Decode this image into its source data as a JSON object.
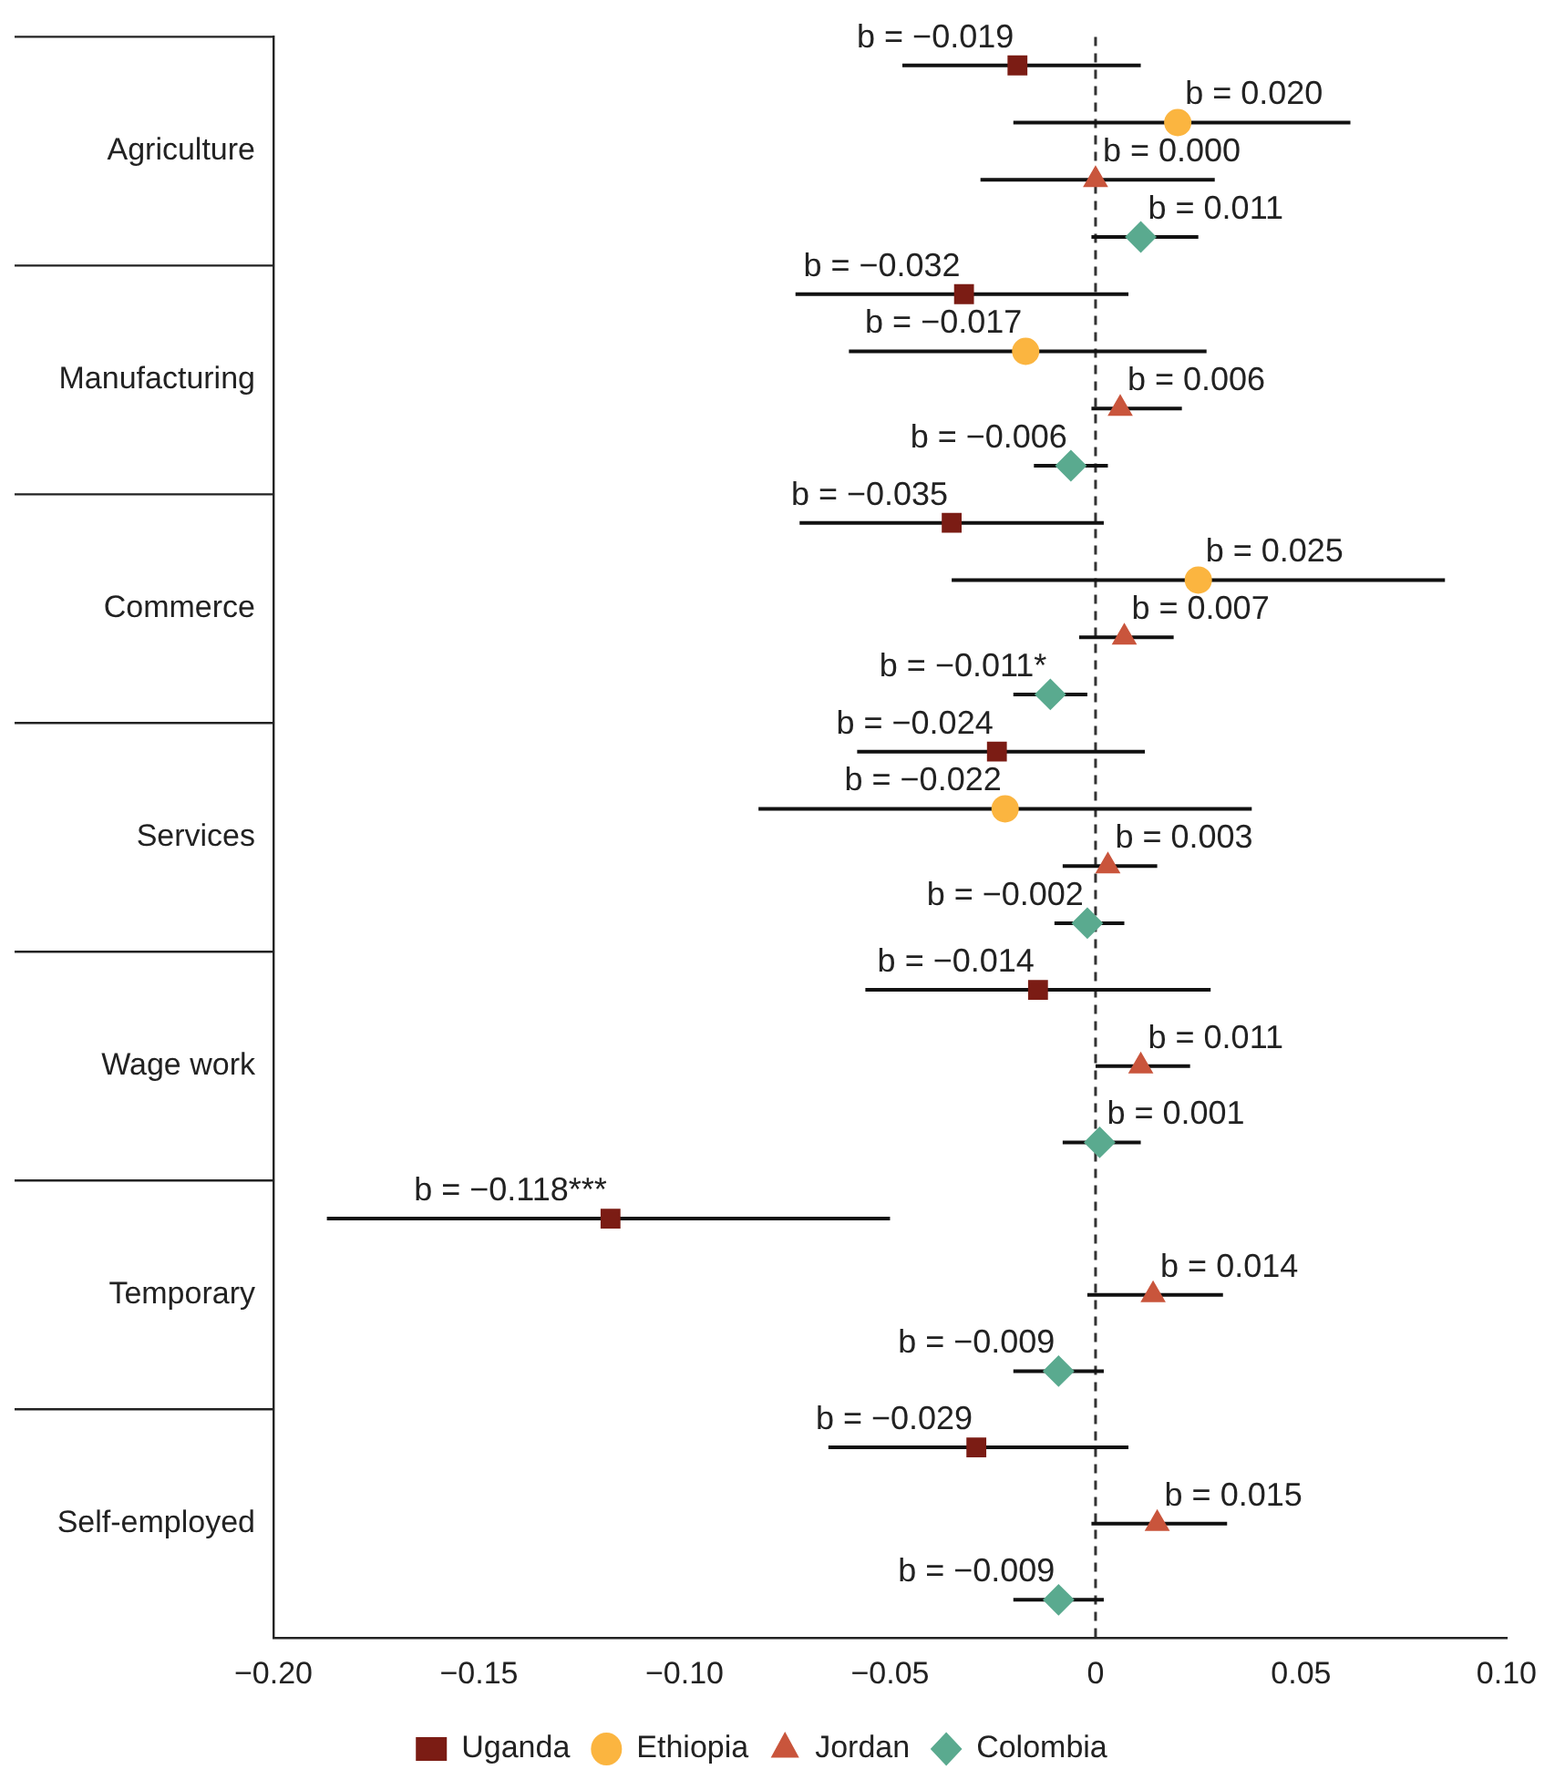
{
  "chart_data": {
    "type": "scatter",
    "orientation": "horizontal",
    "grid": false,
    "legend": "bottom",
    "categories": [
      "Agriculture",
      "Manufacturing",
      "Commerce",
      "Services",
      "Wage work",
      "Temporary",
      "Self-employed"
    ],
    "xlim": [
      -0.2,
      0.1
    ],
    "xticks": [
      {
        "value": -0.2,
        "label": "−0.20"
      },
      {
        "value": -0.15,
        "label": "−0.15"
      },
      {
        "value": -0.1,
        "label": "−0.10"
      },
      {
        "value": -0.05,
        "label": "−0.05"
      },
      0,
      {
        "value": 0.05,
        "label": "0.05"
      },
      {
        "value": 0.1,
        "label": "0.10"
      }
    ],
    "ref_lines": [
      {
        "axis": "x",
        "value": 0,
        "line_style": "dashed",
        "color": "#333333"
      }
    ],
    "series": [
      {
        "name": "Uganda",
        "color": "#7b1c14",
        "marker": "square",
        "values": [
          -0.019,
          -0.032,
          -0.035,
          -0.024,
          -0.014,
          -0.118,
          -0.029
        ],
        "errors": [
          [
            -0.047,
            0.011
          ],
          [
            -0.073,
            0.008
          ],
          [
            -0.072,
            0.002
          ],
          [
            -0.058,
            0.012
          ],
          [
            -0.056,
            0.028
          ],
          [
            -0.187,
            -0.05
          ],
          [
            -0.065,
            0.008
          ]
        ],
        "value_labels": [
          "b = −0.019",
          "b = −0.032",
          "b = −0.035",
          "b = −0.024",
          "b = −0.014",
          "b = −0.118***",
          "b = −0.029"
        ]
      },
      {
        "name": "Ethiopia",
        "color": "#fbb540",
        "marker": "circle",
        "values": [
          0.02,
          -0.017,
          0.025,
          -0.022,
          null,
          null,
          null
        ],
        "errors": [
          [
            -0.02,
            0.062
          ],
          [
            -0.06,
            0.027
          ],
          [
            -0.035,
            0.085
          ],
          [
            -0.082,
            0.038
          ],
          null,
          null,
          null
        ],
        "value_labels": [
          "b = 0.020",
          "b = −0.017",
          "b = 0.025",
          "b = −0.022",
          null,
          null,
          null
        ]
      },
      {
        "name": "Jordan",
        "color": "#c9553c",
        "marker": "triangle",
        "values": [
          0,
          0.006,
          0.007,
          0.003,
          0.011,
          0.014,
          0.015
        ],
        "errors": [
          [
            -0.028,
            0.029
          ],
          [
            -0.001,
            0.021
          ],
          [
            -0.004,
            0.019
          ],
          [
            -0.008,
            0.015
          ],
          [
            0,
            0.023
          ],
          [
            -0.002,
            0.031
          ],
          [
            -0.001,
            0.032
          ]
        ],
        "value_labels": [
          "b = 0.000",
          "b = 0.006",
          "b = 0.007",
          "b = 0.003",
          "b = 0.011",
          "b = 0.014",
          "b = 0.015"
        ]
      },
      {
        "name": "Colombia",
        "color": "#5aaa8f",
        "marker": "diamond",
        "values": [
          0.011,
          -0.006,
          -0.011,
          -0.002,
          0.001,
          -0.009,
          -0.009
        ],
        "errors": [
          [
            -0.001,
            0.025
          ],
          [
            -0.015,
            0.003
          ],
          [
            -0.02,
            -0.002
          ],
          [
            -0.01,
            0.007
          ],
          [
            -0.008,
            0.011
          ],
          [
            -0.02,
            0.002
          ],
          [
            -0.02,
            0.002
          ]
        ],
        "value_labels": [
          "b = 0.011",
          "b = −0.006",
          "b = −0.011*",
          "b = −0.002",
          "b = 0.001",
          "b = −0.009",
          "b = −0.009"
        ]
      }
    ]
  }
}
